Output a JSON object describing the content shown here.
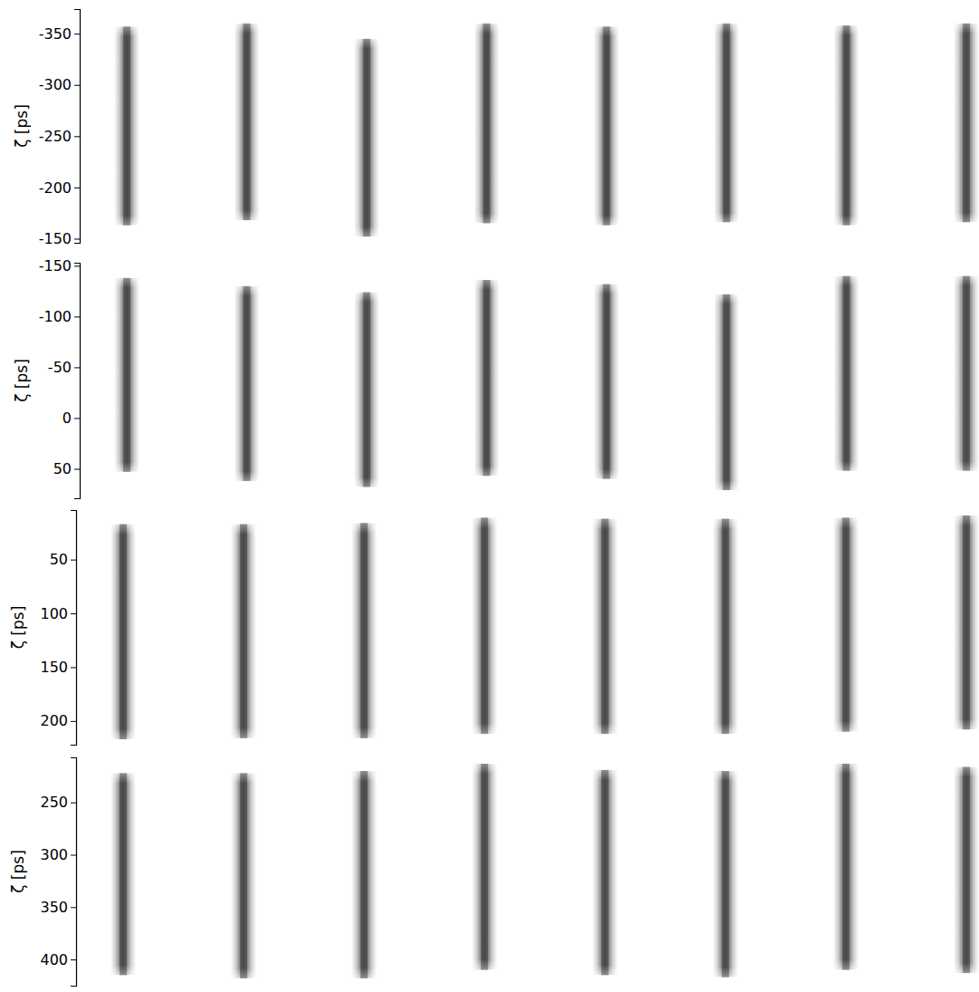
{
  "chart_data": [
    {
      "type": "image",
      "ylabel": "ζ [ps]",
      "ylim": [
        -374,
        -146
      ],
      "yticks": [
        -350,
        -300,
        -250,
        -200,
        -150
      ],
      "tick_labels": "y",
      "streaks": [
        [
          -357,
          -163
        ],
        [
          -360,
          -168
        ],
        [
          -345,
          -152
        ],
        [
          -360,
          -165
        ],
        [
          -357,
          -163
        ],
        [
          -360,
          -166
        ],
        [
          -358,
          -163
        ],
        [
          -360,
          -166
        ]
      ]
    },
    {
      "type": "image",
      "ylabel": "ζ [ps]",
      "ylim": [
        -153,
        79
      ],
      "yticks": [
        -150,
        -100,
        -50,
        0,
        50
      ],
      "tick_labels": "y",
      "streaks": [
        [
          -138,
          53
        ],
        [
          -130,
          62
        ],
        [
          -124,
          68
        ],
        [
          -136,
          57
        ],
        [
          -132,
          60
        ],
        [
          -122,
          71
        ],
        [
          -140,
          52
        ],
        [
          -140,
          52
        ]
      ]
    },
    {
      "type": "image",
      "ylabel": "ζ [ps]",
      "ylim": [
        4,
        222
      ],
      "yticks": [
        50,
        100,
        150,
        200
      ],
      "tick_labels": "y",
      "streaks": [
        [
          17,
          217
        ],
        [
          17,
          216
        ],
        [
          16,
          216
        ],
        [
          11,
          212
        ],
        [
          12,
          212
        ],
        [
          12,
          212
        ],
        [
          11,
          210
        ],
        [
          9,
          208
        ]
      ]
    },
    {
      "type": "image",
      "ylabel": "ζ [ps]",
      "ylim": [
        207,
        425
      ],
      "yticks": [
        250,
        300,
        350,
        400
      ],
      "tick_labels": "y",
      "streaks": [
        [
          222,
          415
        ],
        [
          222,
          418
        ],
        [
          220,
          418
        ],
        [
          213,
          410
        ],
        [
          219,
          415
        ],
        [
          220,
          417
        ],
        [
          213,
          410
        ],
        [
          216,
          413
        ]
      ]
    }
  ]
}
